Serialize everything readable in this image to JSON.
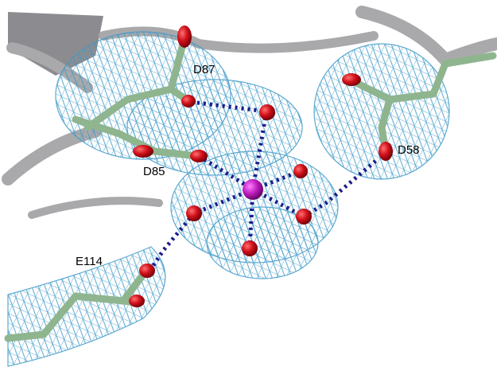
{
  "labels": [
    "D87",
    "D85",
    "D58",
    "E114"
  ]
}
